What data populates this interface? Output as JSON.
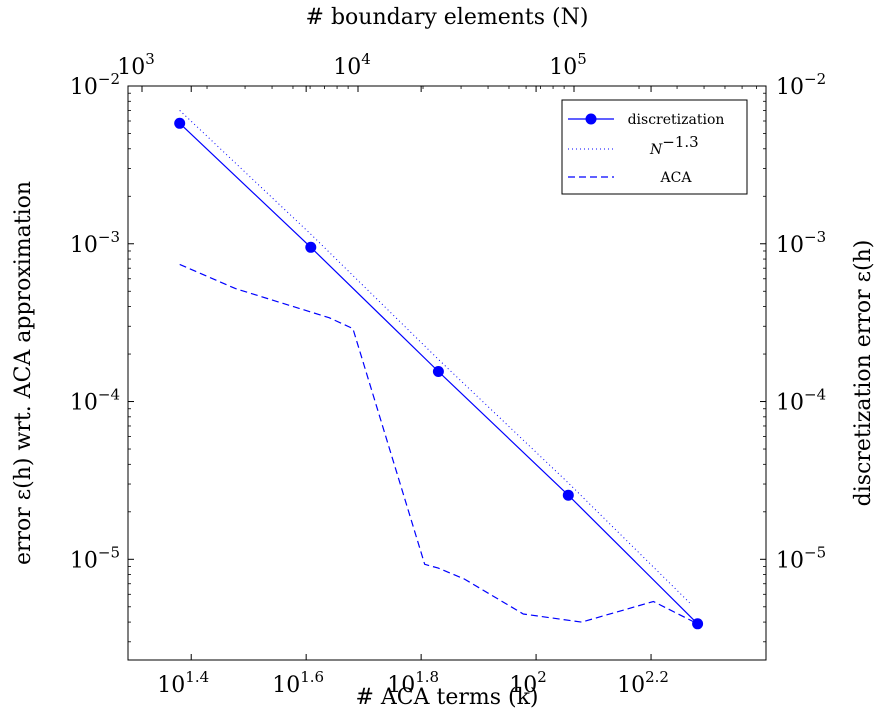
{
  "chart_data": {
    "type": "line",
    "xlabel": "# ACA terms (k)",
    "x2label": "# boundary elements (N)",
    "ylabel": "error ε(h) wrt. ACA approximation",
    "y2label": "discretization error ε(h)",
    "xscale": "log10",
    "yscale": "log10",
    "xlim": [
      19.5,
      251.2
    ],
    "ylim": [
      2.3e-06,
      0.01
    ],
    "x_ticks": [
      {
        "value": 25.12,
        "base": "10",
        "exp": "1.4"
      },
      {
        "value": 39.81,
        "base": "10",
        "exp": "1.6"
      },
      {
        "value": 63.1,
        "base": "10",
        "exp": "1.8"
      },
      {
        "value": 100,
        "base": "10",
        "exp": "2"
      },
      {
        "value": 158.5,
        "base": "10",
        "exp": "2.2"
      }
    ],
    "x2_ticks": [
      {
        "value": 1000,
        "base": "10",
        "exp": "3"
      },
      {
        "value": 10000,
        "base": "10",
        "exp": "4"
      },
      {
        "value": 100000,
        "base": "10",
        "exp": "5"
      }
    ],
    "y_ticks": [
      {
        "value": 0.01,
        "base": "10",
        "exp": "−2"
      },
      {
        "value": 0.001,
        "base": "10",
        "exp": "−3"
      },
      {
        "value": 0.0001,
        "base": "10",
        "exp": "−4"
      },
      {
        "value": 1e-05,
        "base": "10",
        "exp": "−5"
      }
    ],
    "legend_position": "top-right",
    "series": [
      {
        "name": "discretization",
        "style": "solid-marker",
        "color": "#0000ff",
        "x": [
          23.99,
          40.55,
          67.61,
          113.8,
          191.0
        ],
        "y": [
          0.0058,
          0.00095,
          0.000155,
          2.55e-05,
          3.9e-06
        ]
      },
      {
        "name": "N",
        "name_sup": "−1.3",
        "style": "dotted",
        "color": "#0000ff",
        "x": [
          23.99,
          40.55,
          67.61,
          113.8,
          185.0
        ],
        "y": [
          0.007,
          0.00115,
          0.000185,
          3.05e-05,
          5.3e-06
        ]
      },
      {
        "name": "ACA",
        "style": "dashed",
        "color": "#0000ff",
        "x": [
          23.99,
          30.0,
          43.65,
          48.0,
          64.0,
          67.6,
          75.0,
          95.0,
          120.0,
          160.0,
          191.0
        ],
        "y": [
          0.00074,
          0.00052,
          0.00034,
          0.00029,
          9.3e-06,
          8.8e-06,
          7.5e-06,
          4.5e-06,
          4e-06,
          5.4e-06,
          3.9e-06
        ]
      }
    ]
  }
}
